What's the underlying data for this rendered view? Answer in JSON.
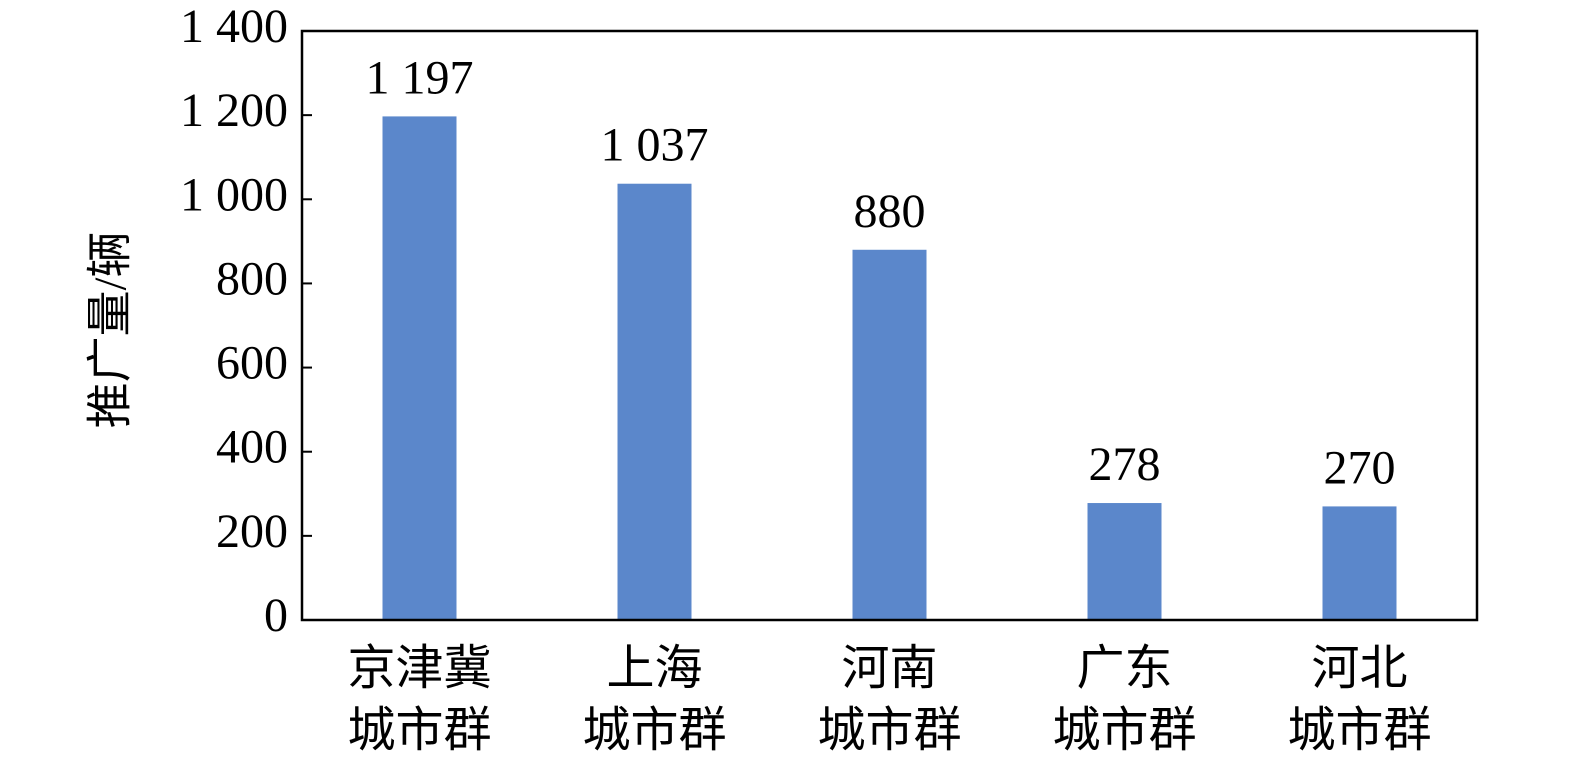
{
  "chart_data": {
    "type": "bar",
    "y_label": "推广量/辆",
    "categories": [
      "京津冀\n城市群",
      "上海\n城市群",
      "河南\n城市群",
      "广东\n城市群",
      "河北\n城市群"
    ],
    "values": [
      1197,
      1037,
      880,
      278,
      270
    ],
    "value_labels": [
      "1 197",
      "1 037",
      "880",
      "278",
      "270"
    ],
    "color": "#5b87cb",
    "ylim": [
      0,
      1400
    ],
    "yticks": [
      0,
      200,
      400,
      600,
      800,
      {
        "value": 1000,
        "label": "1 000"
      },
      {
        "value": 1200,
        "label": "1 200"
      },
      {
        "value": 1400,
        "label": "1 400"
      }
    ],
    "grid": false
  }
}
